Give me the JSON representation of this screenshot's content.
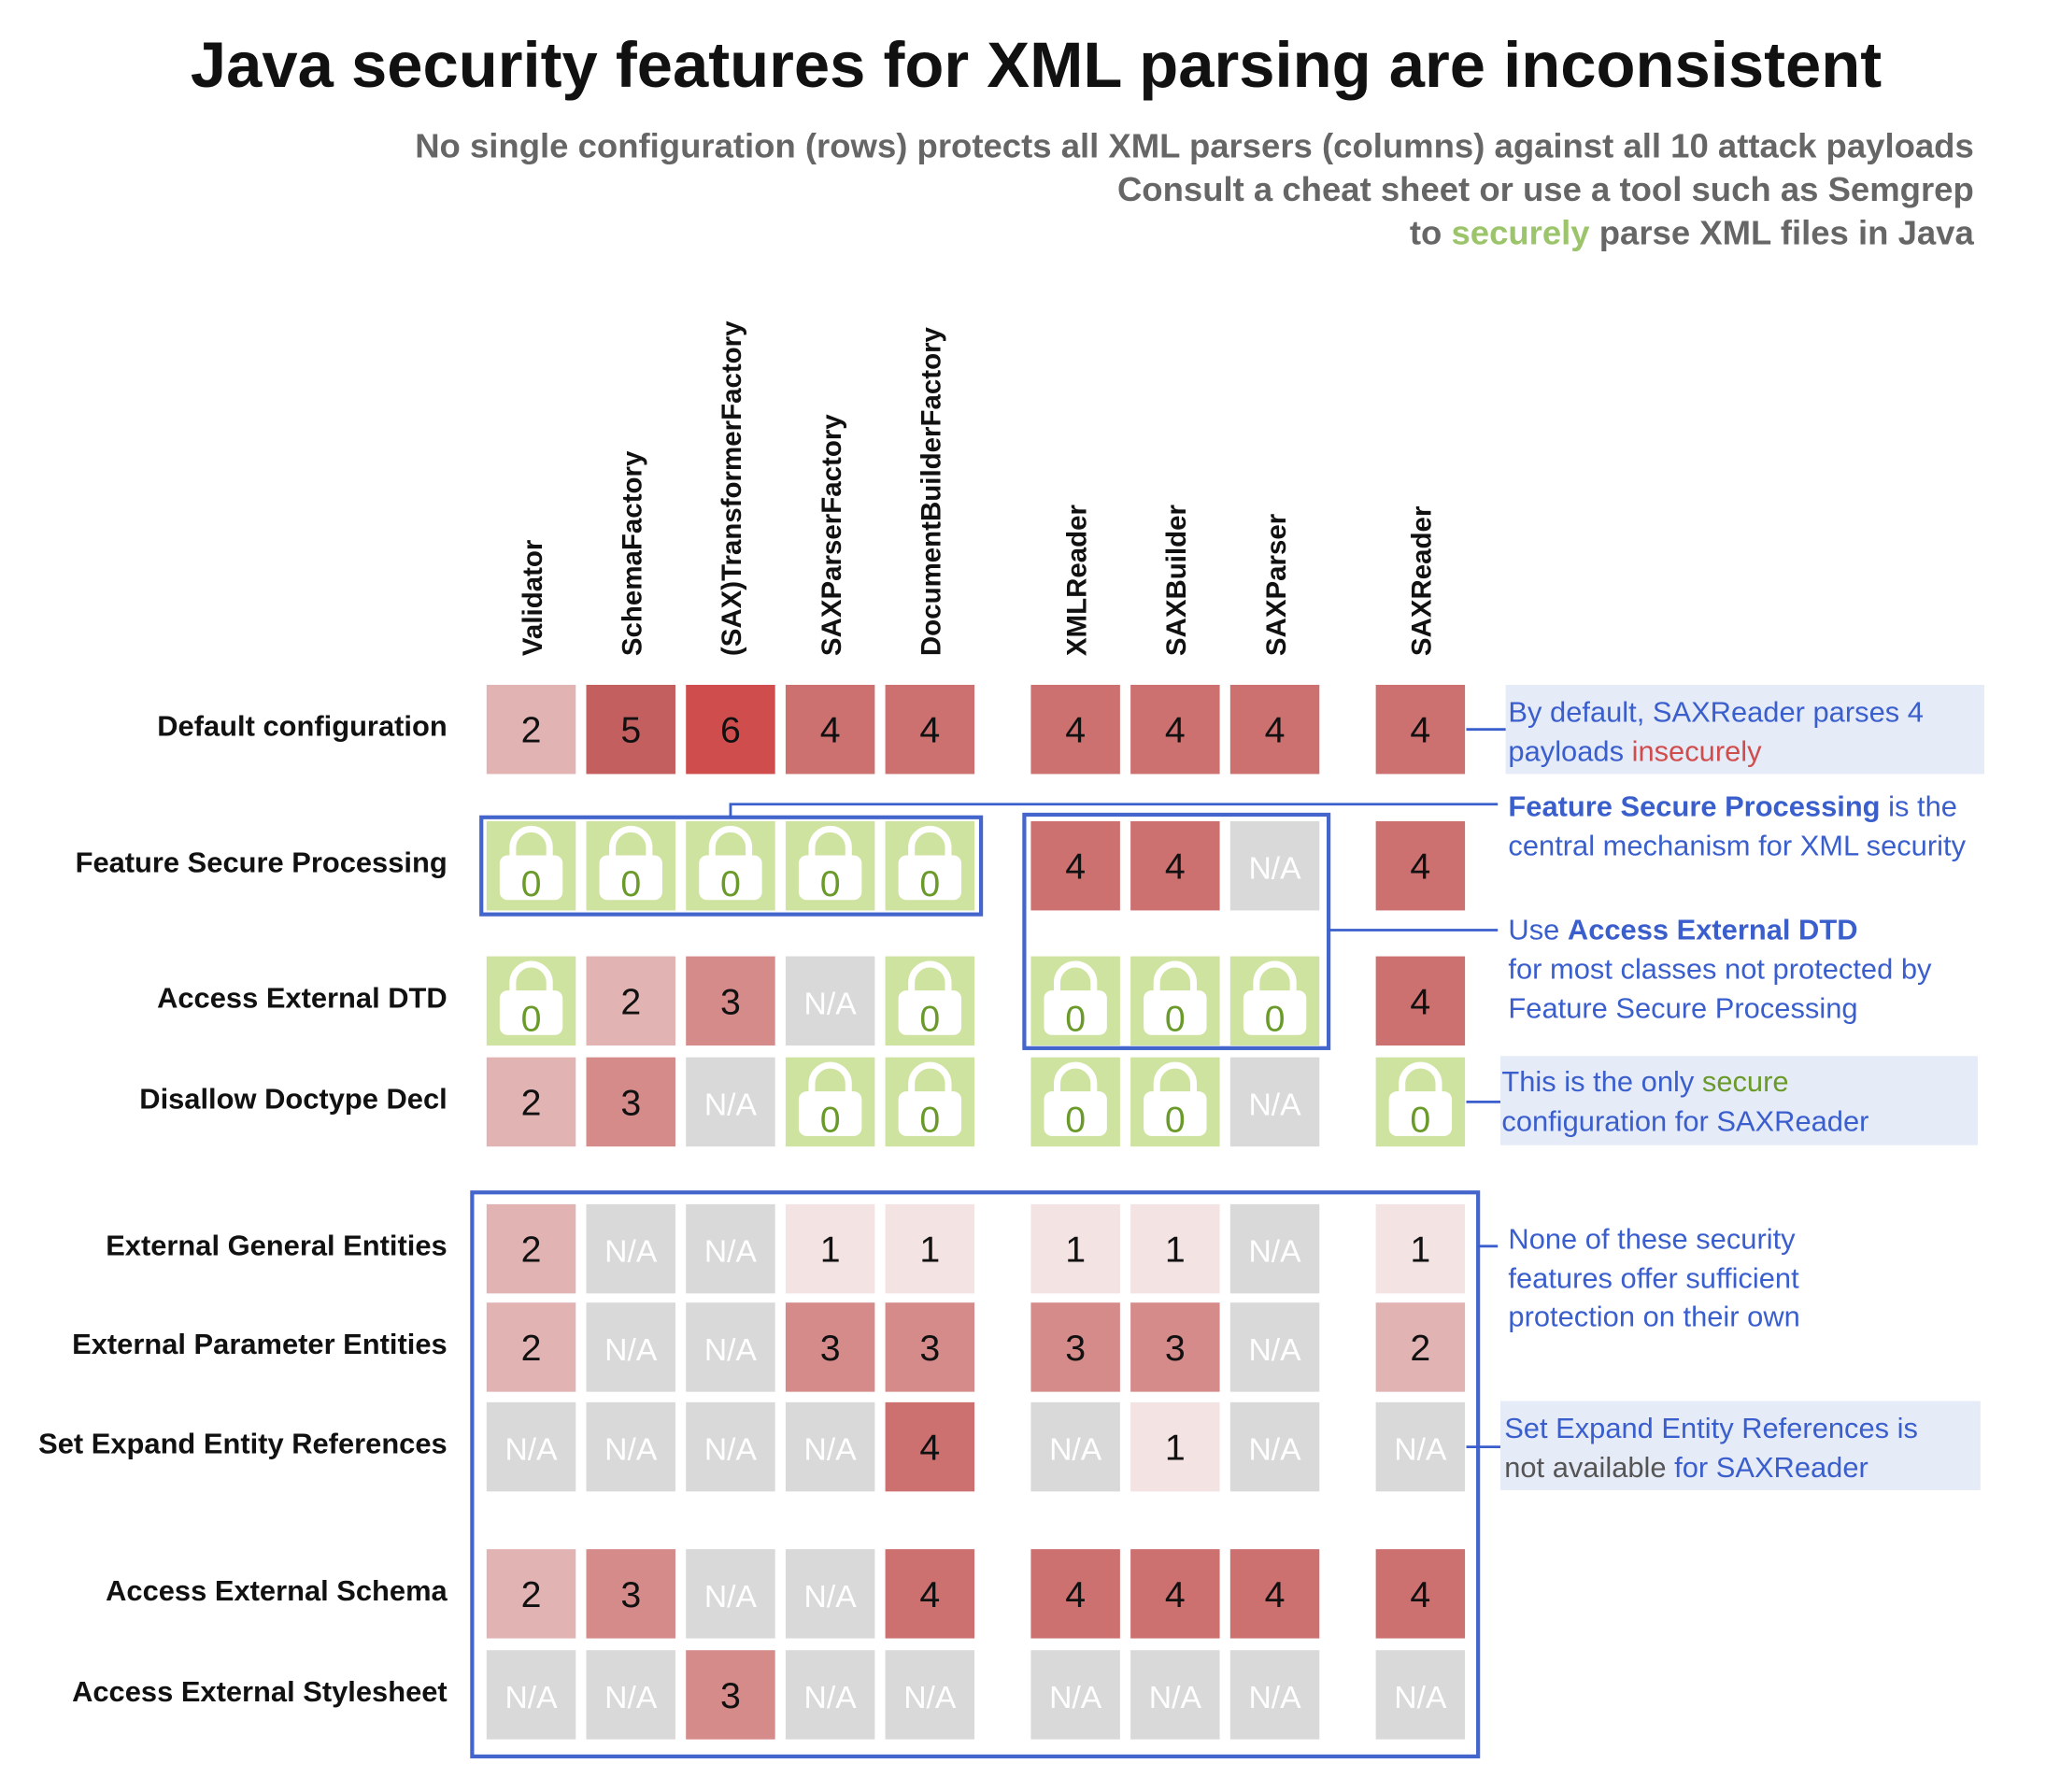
{
  "title": "Java security features for XML parsing are inconsistent",
  "subtitle": {
    "line1": "No single configuration (rows) protects all XML parsers (columns) against all 10 attack payloads",
    "line2": "Consult a cheat sheet or use a tool such as Semgrep",
    "line3": [
      "to ",
      "securely",
      " parse XML files in Java"
    ]
  },
  "table": {
    "columns": [
      "Validator",
      "SchemaFactory",
      "(SAX)TransformerFactory",
      "SAXParserFactory",
      "DocumentBuilderFactory",
      "XMLReader",
      "SAXBuilder",
      "SAXParser",
      "SAXReader"
    ],
    "rows": [
      {
        "label": "Default configuration",
        "cells": [
          2,
          5,
          6,
          4,
          4,
          4,
          4,
          4,
          4
        ]
      },
      {
        "label": "Feature Secure Processing",
        "cells": [
          0,
          0,
          0,
          0,
          0,
          4,
          4,
          "N/A",
          4
        ]
      },
      {
        "label": "Access External DTD",
        "cells": [
          0,
          2,
          3,
          "N/A",
          0,
          0,
          0,
          0,
          4
        ]
      },
      {
        "label": "Disallow Doctype Decl",
        "cells": [
          2,
          3,
          "N/A",
          0,
          0,
          0,
          0,
          "N/A",
          0
        ]
      },
      {
        "label": "External General Entities",
        "cells": [
          2,
          "N/A",
          "N/A",
          1,
          1,
          1,
          1,
          "N/A",
          1
        ]
      },
      {
        "label": "External Parameter Entities",
        "cells": [
          2,
          "N/A",
          "N/A",
          3,
          3,
          3,
          3,
          "N/A",
          2
        ]
      },
      {
        "label": "Set Expand Entity References",
        "cells": [
          "N/A",
          "N/A",
          "N/A",
          "N/A",
          4,
          "N/A",
          1,
          "N/A",
          "N/A"
        ]
      },
      {
        "label": "Access External Schema",
        "cells": [
          2,
          3,
          "N/A",
          "N/A",
          4,
          4,
          4,
          4,
          4
        ]
      },
      {
        "label": "Access External Stylesheet",
        "cells": [
          "N/A",
          "N/A",
          3,
          "N/A",
          "N/A",
          "N/A",
          "N/A",
          "N/A",
          "N/A"
        ]
      }
    ]
  },
  "annotations": [
    [
      [
        "By default, SAXReader parses 4"
      ],
      [
        "payloads ",
        "insecurely"
      ]
    ],
    [
      [
        "Feature Secure Processing",
        " is the"
      ],
      [
        "central mechanism for XML security"
      ]
    ],
    [
      [
        "Use ",
        "Access External DTD"
      ],
      [
        "for most classes not protected by"
      ],
      [
        "Feature Secure Processing"
      ]
    ],
    [
      [
        "This is the only ",
        "secure"
      ],
      [
        "configuration for SAXReader"
      ]
    ],
    [
      [
        "None of these security"
      ],
      [
        "features offer sufficient"
      ],
      [
        "protection on their own"
      ]
    ],
    [
      [
        "Set Expand Entity References is"
      ],
      [
        "not available",
        " for SAXReader"
      ]
    ]
  ]
}
